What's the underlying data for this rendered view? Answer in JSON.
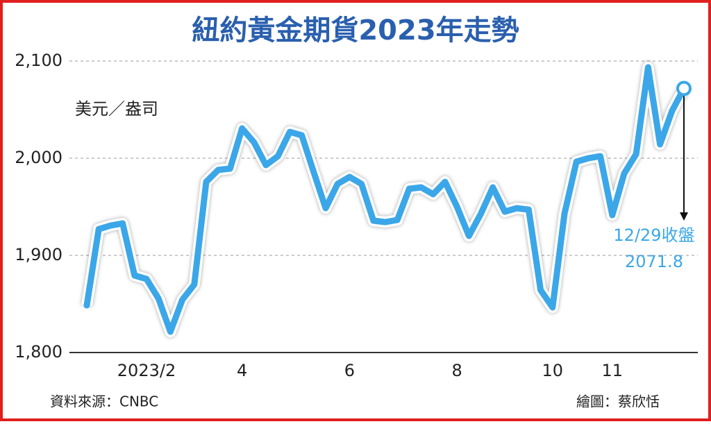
{
  "chart_data": {
    "type": "line",
    "title": "紐約黃金期貨2023年走勢",
    "unit": "美元／盎司",
    "categories": [
      null,
      null,
      null,
      null,
      null,
      "2023/2",
      null,
      null,
      null,
      null,
      null,
      null,
      null,
      "4",
      null,
      null,
      null,
      null,
      null,
      null,
      null,
      null,
      "6",
      null,
      null,
      null,
      null,
      null,
      null,
      null,
      null,
      "8",
      null,
      null,
      null,
      null,
      null,
      null,
      null,
      "10",
      null,
      null,
      null,
      null,
      "11",
      null,
      null,
      null,
      null,
      null,
      null
    ],
    "series": [
      {
        "name": "紐約黃金期貨",
        "color": "#3ba7e8",
        "values": [
          1848.6,
          1927,
          1930.7,
          1932.9,
          1879.3,
          1875.7,
          1855.7,
          1821.4,
          1854.3,
          1870,
          1975.7,
          1987.9,
          1989.3,
          2030.7,
          2016.4,
          1992.9,
          2002.1,
          2027.1,
          2023.6,
          1985.7,
          1948.6,
          1973.6,
          1980.7,
          1973.6,
          1935.7,
          1934.3,
          1936.4,
          1968.6,
          1970,
          1962.9,
          1975.7,
          1950,
          1920,
          1942.9,
          1970,
          1945,
          1948.6,
          1947.1,
          1864.3,
          1846.4,
          1942.9,
          1996.4,
          2000,
          2002.1,
          1941.4,
          1984.3,
          2004.3,
          2093.6,
          2014.3,
          2048.6,
          2071.8
        ]
      }
    ],
    "ylim": [
      1800,
      2110
    ],
    "yticks": [
      {
        "value": 1800,
        "label": "1,800"
      },
      {
        "value": 1900,
        "label": "1,900"
      },
      {
        "value": 2000,
        "label": "2,000"
      },
      {
        "value": 2100,
        "label": "2,100"
      }
    ],
    "grid": true,
    "annotations": [
      "12/29收盤",
      "2071.8"
    ],
    "source": "資料來源：CNBC",
    "credit": "繪圖：蔡欣恬"
  }
}
